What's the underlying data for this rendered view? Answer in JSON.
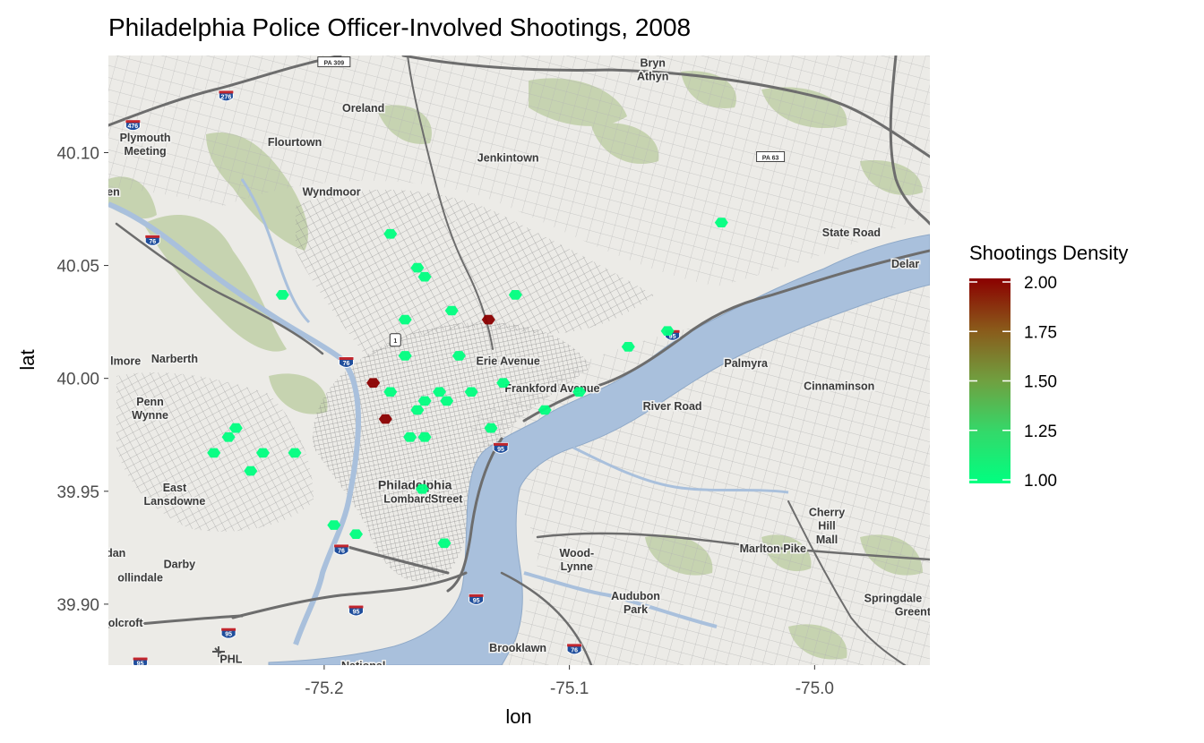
{
  "chart_data": {
    "type": "scatter",
    "title": "Philadelphia Police Officer-Involved Shootings,  2008",
    "xlabel": "lon",
    "ylabel": "lat",
    "xlim": [
      -75.288,
      -74.953
    ],
    "ylim": [
      39.873,
      40.143
    ],
    "x_ticks": [
      {
        "value": -75.2,
        "label": "-75.2"
      },
      {
        "value": -75.1,
        "label": "-75.1"
      },
      {
        "value": -75.0,
        "label": "-75.0"
      }
    ],
    "y_ticks": [
      {
        "value": 39.9,
        "label": "39.90"
      },
      {
        "value": 39.95,
        "label": "39.95"
      },
      {
        "value": 40.0,
        "label": "40.00"
      },
      {
        "value": 40.05,
        "label": "40.05"
      },
      {
        "value": 40.1,
        "label": "40.10"
      }
    ],
    "legend": {
      "title": "Shootings Density",
      "position": "right",
      "ticks": [
        {
          "value": 2.0,
          "label": "2.00"
        },
        {
          "value": 1.75,
          "label": "1.75"
        },
        {
          "value": 1.5,
          "label": "1.50"
        },
        {
          "value": 1.25,
          "label": "1.25"
        },
        {
          "value": 1.0,
          "label": "1.00"
        }
      ],
      "range": [
        1,
        2
      ],
      "color_low": "#00ff80",
      "color_high": "#8b0000"
    },
    "grid": false,
    "points": [
      {
        "lon": -75.173,
        "lat": 40.064,
        "density": 1
      },
      {
        "lon": -75.162,
        "lat": 40.049,
        "density": 1
      },
      {
        "lon": -75.159,
        "lat": 40.045,
        "density": 1
      },
      {
        "lon": -75.217,
        "lat": 40.037,
        "density": 1
      },
      {
        "lon": -75.122,
        "lat": 40.037,
        "density": 1
      },
      {
        "lon": -75.148,
        "lat": 40.03,
        "density": 1
      },
      {
        "lon": -75.133,
        "lat": 40.026,
        "density": 2
      },
      {
        "lon": -75.167,
        "lat": 40.026,
        "density": 1
      },
      {
        "lon": -75.038,
        "lat": 40.069,
        "density": 1
      },
      {
        "lon": -75.06,
        "lat": 40.021,
        "density": 1
      },
      {
        "lon": -75.076,
        "lat": 40.014,
        "density": 1
      },
      {
        "lon": -75.167,
        "lat": 40.01,
        "density": 1
      },
      {
        "lon": -75.145,
        "lat": 40.01,
        "density": 1
      },
      {
        "lon": -75.18,
        "lat": 39.998,
        "density": 2
      },
      {
        "lon": -75.127,
        "lat": 39.998,
        "density": 1
      },
      {
        "lon": -75.173,
        "lat": 39.994,
        "density": 1
      },
      {
        "lon": -75.153,
        "lat": 39.994,
        "density": 1
      },
      {
        "lon": -75.14,
        "lat": 39.994,
        "density": 1
      },
      {
        "lon": -75.096,
        "lat": 39.994,
        "density": 1
      },
      {
        "lon": -75.159,
        "lat": 39.99,
        "density": 1
      },
      {
        "lon": -75.15,
        "lat": 39.99,
        "density": 1
      },
      {
        "lon": -75.162,
        "lat": 39.986,
        "density": 1
      },
      {
        "lon": -75.11,
        "lat": 39.986,
        "density": 1
      },
      {
        "lon": -75.175,
        "lat": 39.982,
        "density": 2
      },
      {
        "lon": -75.236,
        "lat": 39.978,
        "density": 1
      },
      {
        "lon": -75.132,
        "lat": 39.978,
        "density": 1
      },
      {
        "lon": -75.239,
        "lat": 39.974,
        "density": 1
      },
      {
        "lon": -75.165,
        "lat": 39.974,
        "density": 1
      },
      {
        "lon": -75.159,
        "lat": 39.974,
        "density": 1
      },
      {
        "lon": -75.245,
        "lat": 39.967,
        "density": 1
      },
      {
        "lon": -75.225,
        "lat": 39.967,
        "density": 1
      },
      {
        "lon": -75.212,
        "lat": 39.967,
        "density": 1
      },
      {
        "lon": -75.23,
        "lat": 39.959,
        "density": 1
      },
      {
        "lon": -75.16,
        "lat": 39.951,
        "density": 1
      },
      {
        "lon": -75.196,
        "lat": 39.935,
        "density": 1
      },
      {
        "lon": -75.187,
        "lat": 39.931,
        "density": 1
      },
      {
        "lon": -75.151,
        "lat": 39.927,
        "density": 1
      }
    ]
  },
  "basemap": {
    "place_labels": [
      {
        "text": "Bryn",
        "lon": -75.066,
        "lat": 40.138
      },
      {
        "text": "Athyn",
        "lon": -75.066,
        "lat": 40.132
      },
      {
        "text": "Oreland",
        "lon": -75.184,
        "lat": 40.118
      },
      {
        "text": "Plymouth",
        "lon": -75.273,
        "lat": 40.105
      },
      {
        "text": "Meeting",
        "lon": -75.273,
        "lat": 40.099
      },
      {
        "text": "Flourtown",
        "lon": -75.212,
        "lat": 40.103
      },
      {
        "text": "Jenkintown",
        "lon": -75.125,
        "lat": 40.096
      },
      {
        "text": "Wyndmoor",
        "lon": -75.197,
        "lat": 40.081
      },
      {
        "text": "Narberth",
        "lon": -75.261,
        "lat": 40.007
      },
      {
        "text": "lmore",
        "lon": -75.281,
        "lat": 40.006
      },
      {
        "text": "Penn",
        "lon": -75.271,
        "lat": 39.988
      },
      {
        "text": "Wynne",
        "lon": -75.271,
        "lat": 39.982
      },
      {
        "text": "East",
        "lon": -75.261,
        "lat": 39.95
      },
      {
        "text": "Lansdowne",
        "lon": -75.261,
        "lat": 39.944
      },
      {
        "text": "dan",
        "lon": -75.285,
        "lat": 39.921
      },
      {
        "text": "Darby",
        "lon": -75.259,
        "lat": 39.916
      },
      {
        "text": "ollindale",
        "lon": -75.275,
        "lat": 39.91
      },
      {
        "text": "olcroft",
        "lon": -75.281,
        "lat": 39.89
      },
      {
        "text": "Philadelphia",
        "lon": -75.163,
        "lat": 39.951
      },
      {
        "text": "Lombard",
        "lon": -75.166,
        "lat": 39.945
      },
      {
        "text": "Street",
        "lon": -75.15,
        "lat": 39.945
      },
      {
        "text": "Palmyra",
        "lon": -75.028,
        "lat": 40.005
      },
      {
        "text": "Cinnaminson",
        "lon": -74.99,
        "lat": 39.995
      },
      {
        "text": "Cherry",
        "lon": -74.995,
        "lat": 39.939
      },
      {
        "text": "Hill",
        "lon": -74.995,
        "lat": 39.933
      },
      {
        "text": "Mall",
        "lon": -74.995,
        "lat": 39.927
      },
      {
        "text": "Wood-",
        "lon": -75.097,
        "lat": 39.921
      },
      {
        "text": "Lynne",
        "lon": -75.097,
        "lat": 39.915
      },
      {
        "text": "Audubon",
        "lon": -75.073,
        "lat": 39.902
      },
      {
        "text": "Park",
        "lon": -75.073,
        "lat": 39.896
      },
      {
        "text": "Springdale",
        "lon": -74.968,
        "lat": 39.901
      },
      {
        "text": "Greent",
        "lon": -74.96,
        "lat": 39.895
      },
      {
        "text": "Brooklawn",
        "lon": -75.121,
        "lat": 39.879
      },
      {
        "text": "PHL",
        "lon": -75.238,
        "lat": 39.874
      },
      {
        "text": "National",
        "lon": -75.184,
        "lat": 39.871
      },
      {
        "text": "Delar",
        "lon": -74.963,
        "lat": 40.049
      },
      {
        "text": "en",
        "lon": -75.286,
        "lat": 40.081
      },
      {
        "text": "Erie Avenue",
        "lon": -75.125,
        "lat": 40.006
      },
      {
        "text": "Frankford Avenue",
        "lon": -75.107,
        "lat": 39.994
      },
      {
        "text": "River Road",
        "lon": -75.058,
        "lat": 39.986
      },
      {
        "text": "Marlton Pike",
        "lon": -75.017,
        "lat": 39.923
      },
      {
        "text": "State Road",
        "lon": -74.985,
        "lat": 40.063
      }
    ],
    "shields": [
      {
        "text": "476",
        "lon": -75.278,
        "lat": 40.112,
        "kind": "interstate"
      },
      {
        "text": "276",
        "lon": -75.24,
        "lat": 40.125,
        "kind": "interstate"
      },
      {
        "text": "76",
        "lon": -75.27,
        "lat": 40.061,
        "kind": "interstate"
      },
      {
        "text": "76",
        "lon": -75.191,
        "lat": 40.007,
        "kind": "interstate"
      },
      {
        "text": "76",
        "lon": -75.193,
        "lat": 39.924,
        "kind": "interstate"
      },
      {
        "text": "76",
        "lon": -75.098,
        "lat": 39.88,
        "kind": "interstate"
      },
      {
        "text": "95",
        "lon": -75.058,
        "lat": 40.019,
        "kind": "interstate"
      },
      {
        "text": "95",
        "lon": -75.128,
        "lat": 39.969,
        "kind": "interstate"
      },
      {
        "text": "95",
        "lon": -75.138,
        "lat": 39.902,
        "kind": "interstate"
      },
      {
        "text": "95",
        "lon": -75.187,
        "lat": 39.897,
        "kind": "interstate"
      },
      {
        "text": "95",
        "lon": -75.239,
        "lat": 39.887,
        "kind": "interstate"
      },
      {
        "text": "95",
        "lon": -75.275,
        "lat": 39.874,
        "kind": "interstate"
      },
      {
        "text": "1",
        "lon": -75.171,
        "lat": 40.017,
        "kind": "us"
      },
      {
        "text": "PA 309",
        "lon": -75.196,
        "lat": 40.14,
        "kind": "route"
      },
      {
        "text": "PA 63",
        "lon": -75.018,
        "lat": 40.098,
        "kind": "route"
      }
    ]
  }
}
